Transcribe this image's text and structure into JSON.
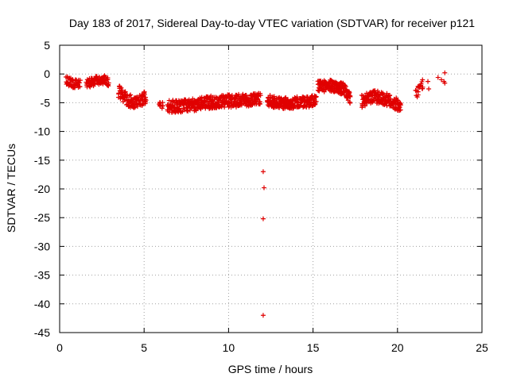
{
  "chart_data": {
    "type": "scatter",
    "title": "Day 183 of 2017, Sidereal Day-to-day VTEC variation (SDTVAR) for receiver p121",
    "xlabel": "GPS time / hours",
    "ylabel": "SDTVAR / TECUs",
    "xlim": [
      0,
      25
    ],
    "ylim": [
      -45,
      5
    ],
    "xticks": [
      0,
      5,
      10,
      15,
      20,
      25
    ],
    "yticks": [
      5,
      0,
      -5,
      -10,
      -15,
      -20,
      -25,
      -30,
      -35,
      -40,
      -45
    ],
    "grid": true,
    "marker": "plus",
    "color": "#e00000",
    "series": [
      {
        "name": "SDTVAR",
        "segments": [
          {
            "x0": 0.4,
            "x1": 1.2,
            "anchors": [
              [
                0.4,
                -1.2
              ],
              [
                0.8,
                -1.6
              ],
              [
                1.2,
                -1.6
              ]
            ],
            "spread": 0.8,
            "step": 0.05
          },
          {
            "x0": 1.6,
            "x1": 2.9,
            "anchors": [
              [
                1.6,
                -1.6
              ],
              [
                2.2,
                -1.2
              ],
              [
                2.6,
                -1.0
              ],
              [
                2.9,
                -1.3
              ]
            ],
            "spread": 0.8,
            "step": 0.05
          },
          {
            "x0": 3.5,
            "x1": 5.1,
            "anchors": [
              [
                3.5,
                -3.0
              ],
              [
                4.0,
                -4.5
              ],
              [
                4.4,
                -5.0
              ],
              [
                4.8,
                -4.5
              ],
              [
                5.1,
                -4.0
              ]
            ],
            "spread": 1.1,
            "step": 0.04
          },
          {
            "x0": 5.9,
            "x1": 6.1,
            "anchors": [
              [
                5.9,
                -5.0
              ],
              [
                6.1,
                -5.5
              ]
            ],
            "spread": 0.6,
            "step": 0.1
          },
          {
            "x0": 6.4,
            "x1": 11.9,
            "anchors": [
              [
                6.4,
                -5.5
              ],
              [
                7.0,
                -5.7
              ],
              [
                8.0,
                -5.3
              ],
              [
                9.0,
                -4.9
              ],
              [
                10.0,
                -4.7
              ],
              [
                11.0,
                -4.6
              ],
              [
                11.9,
                -4.2
              ]
            ],
            "spread": 1.1,
            "step": 0.04
          },
          {
            "x0": 12.3,
            "x1": 15.2,
            "anchors": [
              [
                12.3,
                -4.6
              ],
              [
                13.0,
                -5.1
              ],
              [
                14.0,
                -5.0
              ],
              [
                15.0,
                -4.7
              ],
              [
                15.2,
                -4.4
              ]
            ],
            "spread": 1.0,
            "step": 0.04
          },
          {
            "x0": 15.3,
            "x1": 17.2,
            "anchors": [
              [
                15.3,
                -2.2
              ],
              [
                16.0,
                -2.0
              ],
              [
                16.8,
                -2.6
              ],
              [
                17.2,
                -4.2
              ]
            ],
            "spread": 1.0,
            "step": 0.035
          },
          {
            "x0": 17.9,
            "x1": 20.2,
            "anchors": [
              [
                17.9,
                -4.8
              ],
              [
                18.6,
                -3.9
              ],
              [
                19.4,
                -4.5
              ],
              [
                20.2,
                -5.6
              ]
            ],
            "spread": 1.1,
            "step": 0.04
          },
          {
            "x0": 21.1,
            "x1": 21.5,
            "anchors": [
              [
                21.1,
                -3.5
              ],
              [
                21.5,
                -1.8
              ]
            ],
            "spread": 1.0,
            "step": 0.08
          }
        ],
        "points": [
          [
            12.05,
            -17.0
          ],
          [
            12.1,
            -19.8
          ],
          [
            12.05,
            -25.2
          ],
          [
            12.05,
            -42.0
          ],
          [
            21.8,
            -1.3
          ],
          [
            21.85,
            -2.6
          ],
          [
            22.4,
            -0.6
          ],
          [
            22.6,
            -1.0
          ],
          [
            22.8,
            0.2
          ],
          [
            22.8,
            -1.6
          ],
          [
            22.75,
            -1.3
          ]
        ]
      }
    ]
  }
}
